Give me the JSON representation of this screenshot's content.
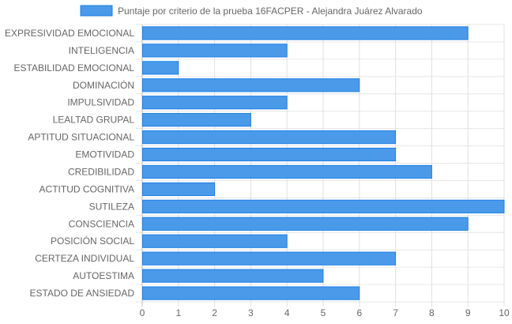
{
  "chart_data": {
    "type": "bar",
    "orientation": "horizontal",
    "categories": [
      "EXPRESIVIDAD EMOCIONAL",
      "INTELIGENCIA",
      "ESTABILIDAD EMOCIONAL",
      "DOMINACIÓN",
      "IMPULSIVIDAD",
      "LEALTAD GRUPAL",
      "APTITUD SITUACIONAL",
      "EMOTIVIDAD",
      "CREDIBILIDAD",
      "ACTITUD COGNITIVA",
      "SUTILEZA",
      "CONSCIENCIA",
      "POSICIÓN SOCIAL",
      "CERTEZA INDIVIDUAL",
      "AUTOESTIMA",
      "ESTADO DE ANSIEDAD"
    ],
    "series": [
      {
        "name": "Puntaje por criterio de la prueba 16FACPER - Alejandra Juárez Alvarado",
        "values": [
          9,
          4,
          1,
          6,
          4,
          3,
          7,
          7,
          8,
          2,
          10,
          9,
          4,
          7,
          5,
          6
        ],
        "color": "#4a9ae9",
        "border_color": "#1e7fe6"
      }
    ],
    "xlim": [
      0,
      10
    ],
    "xticks": [
      0,
      1,
      2,
      3,
      4,
      5,
      6,
      7,
      8,
      9,
      10
    ],
    "grid": true,
    "legend_position": "top",
    "title": "",
    "xlabel": "",
    "ylabel": ""
  }
}
